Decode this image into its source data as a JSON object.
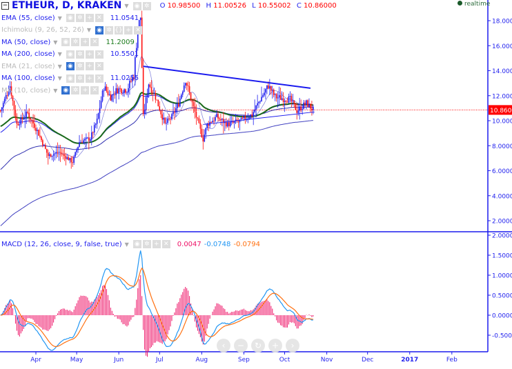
{
  "header": {
    "title": "ETHEUR, D, KRAKEN",
    "o_label": "O",
    "o": "10.98500",
    "h_label": "H",
    "h": "11.00526",
    "l_label": "L",
    "l": "10.55002",
    "c_label": "C",
    "c": "10.86000",
    "collapse": "−"
  },
  "realtime": "realtime",
  "indicators": [
    {
      "name": "EMA (55, close)",
      "value": "11.0541",
      "color": "#2222ee",
      "dim": false
    },
    {
      "name": "Ichimoku (9, 26, 52, 26)",
      "value": "",
      "color": "",
      "dim": true
    },
    {
      "name": "MA (50, close)",
      "value": "11.2009",
      "color": "#1a7a1a",
      "dim": false
    },
    {
      "name": "MA (200, close)",
      "value": "10.5501",
      "color": "#2222ee",
      "dim": false
    },
    {
      "name": "EMA (21, close)",
      "value": "",
      "color": "",
      "dim": true
    },
    {
      "name": "MA (100, close)",
      "value": "11.0255",
      "color": "#2222ee",
      "dim": false
    },
    {
      "name": "MA (10, close)",
      "value": "",
      "color": "",
      "dim": true
    }
  ],
  "macd": {
    "name": "MACD (12, 26, close, 9, false, true)",
    "hist": "0.0047",
    "macd": "-0.0748",
    "signal": "-0.0794",
    "hist_color": "#ee1166",
    "macd_color": "#2196f3",
    "signal_color": "#ff7010"
  },
  "nav": {
    "scroll_left": "‹",
    "zoom_out": "−",
    "reset": "↻",
    "zoom_in": "+",
    "scroll_right": "›"
  },
  "chart_data": {
    "type": "candlestick",
    "symbol": "ETHEUR",
    "interval": "D",
    "exchange": "KRAKEN",
    "price_axis": {
      "ticks": [
        "18.00000",
        "16.00000",
        "14.00000",
        "12.00000",
        "10.00000",
        "8.00000",
        "6.00000",
        "4.00000",
        "2.00000"
      ],
      "range": [
        1.2,
        19.5
      ]
    },
    "last_price": "10.86000",
    "last_price_value": 10.86,
    "macd_axis": {
      "ticks": [
        "2.0000",
        "1.5000",
        "1.0000",
        "0.5000",
        "0.0000",
        "-0.5000"
      ],
      "range": [
        -0.75,
        2.0
      ]
    },
    "time_axis": {
      "ticks": [
        {
          "label": "Apr",
          "date": "2016-04-01"
        },
        {
          "label": "May",
          "date": "2016-05-01"
        },
        {
          "label": "Jun",
          "date": "2016-06-01"
        },
        {
          "label": "Jul",
          "date": "2016-07-01"
        },
        {
          "label": "Aug",
          "date": "2016-08-01"
        },
        {
          "label": "Sep",
          "date": "2016-09-01"
        },
        {
          "label": "Oct",
          "date": "2016-10-01"
        },
        {
          "label": "Nov",
          "date": "2016-11-01"
        },
        {
          "label": "Dec",
          "date": "2016-12-01"
        },
        {
          "label": "2017",
          "date": "2017-01-01"
        },
        {
          "label": "Feb",
          "date": "2017-02-01"
        }
      ]
    },
    "price_path": [
      [
        "2016-03-06",
        10.8
      ],
      [
        "2016-03-13",
        12.8
      ],
      [
        "2016-03-18",
        9.7
      ],
      [
        "2016-03-26",
        10.6
      ],
      [
        "2016-04-02",
        9.2
      ],
      [
        "2016-04-10",
        7.2
      ],
      [
        "2016-04-18",
        7.5
      ],
      [
        "2016-04-28",
        6.7
      ],
      [
        "2016-05-03",
        8.3
      ],
      [
        "2016-05-11",
        8.6
      ],
      [
        "2016-05-16",
        10.0
      ],
      [
        "2016-05-21",
        12.7
      ],
      [
        "2016-05-26",
        11.9
      ],
      [
        "2016-05-31",
        12.5
      ],
      [
        "2016-06-07",
        12.5
      ],
      [
        "2016-06-12",
        13.6
      ],
      [
        "2016-06-15",
        17.4
      ],
      [
        "2016-06-17",
        18.3
      ],
      [
        "2016-06-19",
        10.3
      ],
      [
        "2016-06-23",
        13.0
      ],
      [
        "2016-06-28",
        11.9
      ],
      [
        "2016-07-05",
        9.7
      ],
      [
        "2016-07-10",
        10.3
      ],
      [
        "2016-07-15",
        11.4
      ],
      [
        "2016-07-20",
        13.3
      ],
      [
        "2016-07-25",
        11.4
      ],
      [
        "2016-08-02",
        8.5
      ],
      [
        "2016-08-05",
        9.7
      ],
      [
        "2016-08-12",
        10.3
      ],
      [
        "2016-08-20",
        9.7
      ],
      [
        "2016-08-30",
        10.0
      ],
      [
        "2016-09-07",
        10.5
      ],
      [
        "2016-09-14",
        11.9
      ],
      [
        "2016-09-19",
        12.8
      ],
      [
        "2016-09-24",
        11.9
      ],
      [
        "2016-10-05",
        11.7
      ],
      [
        "2016-10-10",
        10.8
      ],
      [
        "2016-10-17",
        11.4
      ],
      [
        "2016-10-22",
        10.86
      ]
    ],
    "trendlines": [
      {
        "from": [
          "2016-06-19",
          14.35
        ],
        "to": [
          "2016-10-20",
          12.6
        ],
        "color": "#1a1aee"
      },
      {
        "from": [
          "2016-08-02",
          9.7
        ],
        "to": [
          "2016-10-23",
          10.7
        ],
        "color": "#1a1aee"
      }
    ],
    "up_color": "#1a1aee",
    "down_color": "#ff1010"
  }
}
